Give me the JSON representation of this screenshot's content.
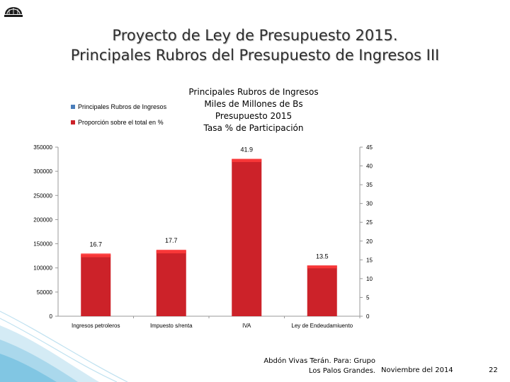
{
  "slide": {
    "title_line1": "Proyecto de Ley de Presupuesto 2015.",
    "title_line2": "Principales Rubros del Presupuesto de Ingresos III"
  },
  "chart_data": {
    "type": "bar",
    "title_lines": [
      "Principales Rubros de Ingresos",
      "Miles de Millones de Bs",
      "Presupuesto 2015",
      "Tasa % de Participación"
    ],
    "categories": [
      "Ingresos petroleros",
      "Impuesto s/renta",
      "IVA",
      "Ley de Endeudamiuento"
    ],
    "series": [
      {
        "name": "Principales  Rubros de Ingresos",
        "values": [
          128000,
          136000,
          325000,
          105000
        ],
        "color": "#cc2229",
        "axis": "left"
      },
      {
        "name": "Proporción sobre el total en %",
        "values": [
          16.7,
          17.7,
          41.9,
          13.5
        ],
        "color": "#ff3b3b",
        "axis": "right"
      }
    ],
    "left_axis": {
      "min": 0,
      "max": 350000,
      "ticks": [
        "0",
        "50000",
        "100000",
        "150000",
        "200000",
        "250000",
        "300000",
        "350000"
      ]
    },
    "right_axis": {
      "min": 0,
      "max": 45,
      "ticks": [
        "0",
        "5",
        "10",
        "15",
        "20",
        "25",
        "30",
        "35",
        "40",
        "45"
      ]
    },
    "data_labels": [
      "16.7",
      "17.7",
      "41.9",
      "13.5"
    ],
    "legend_position": "top-left"
  },
  "legend_colors": {
    "series1": "#4a7ebb",
    "series2": "#cc2229"
  },
  "footer": {
    "credit_line1": "Abdón Vivas Terán. Para: Grupo",
    "credit_line2": "Los Palos Grandes.",
    "date": "Noviembre del 2014",
    "page": "22"
  }
}
